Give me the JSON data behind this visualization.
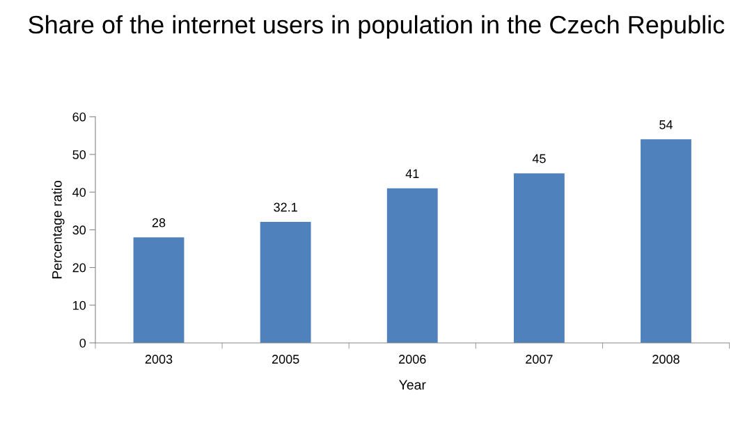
{
  "chart_data": {
    "type": "bar",
    "title": "Share of the internet users in population in the Czech Republic",
    "xlabel": "Year",
    "ylabel": "Percentage ratio",
    "categories": [
      "2003",
      "2005",
      "2006",
      "2007",
      "2008"
    ],
    "values": [
      28,
      32.1,
      41,
      45,
      54
    ],
    "color": "#4f81bd",
    "ylim": [
      0,
      60
    ],
    "yticks": [
      0,
      10,
      20,
      30,
      40,
      50,
      60
    ],
    "grid": false,
    "legend": false,
    "data_labels": true
  }
}
